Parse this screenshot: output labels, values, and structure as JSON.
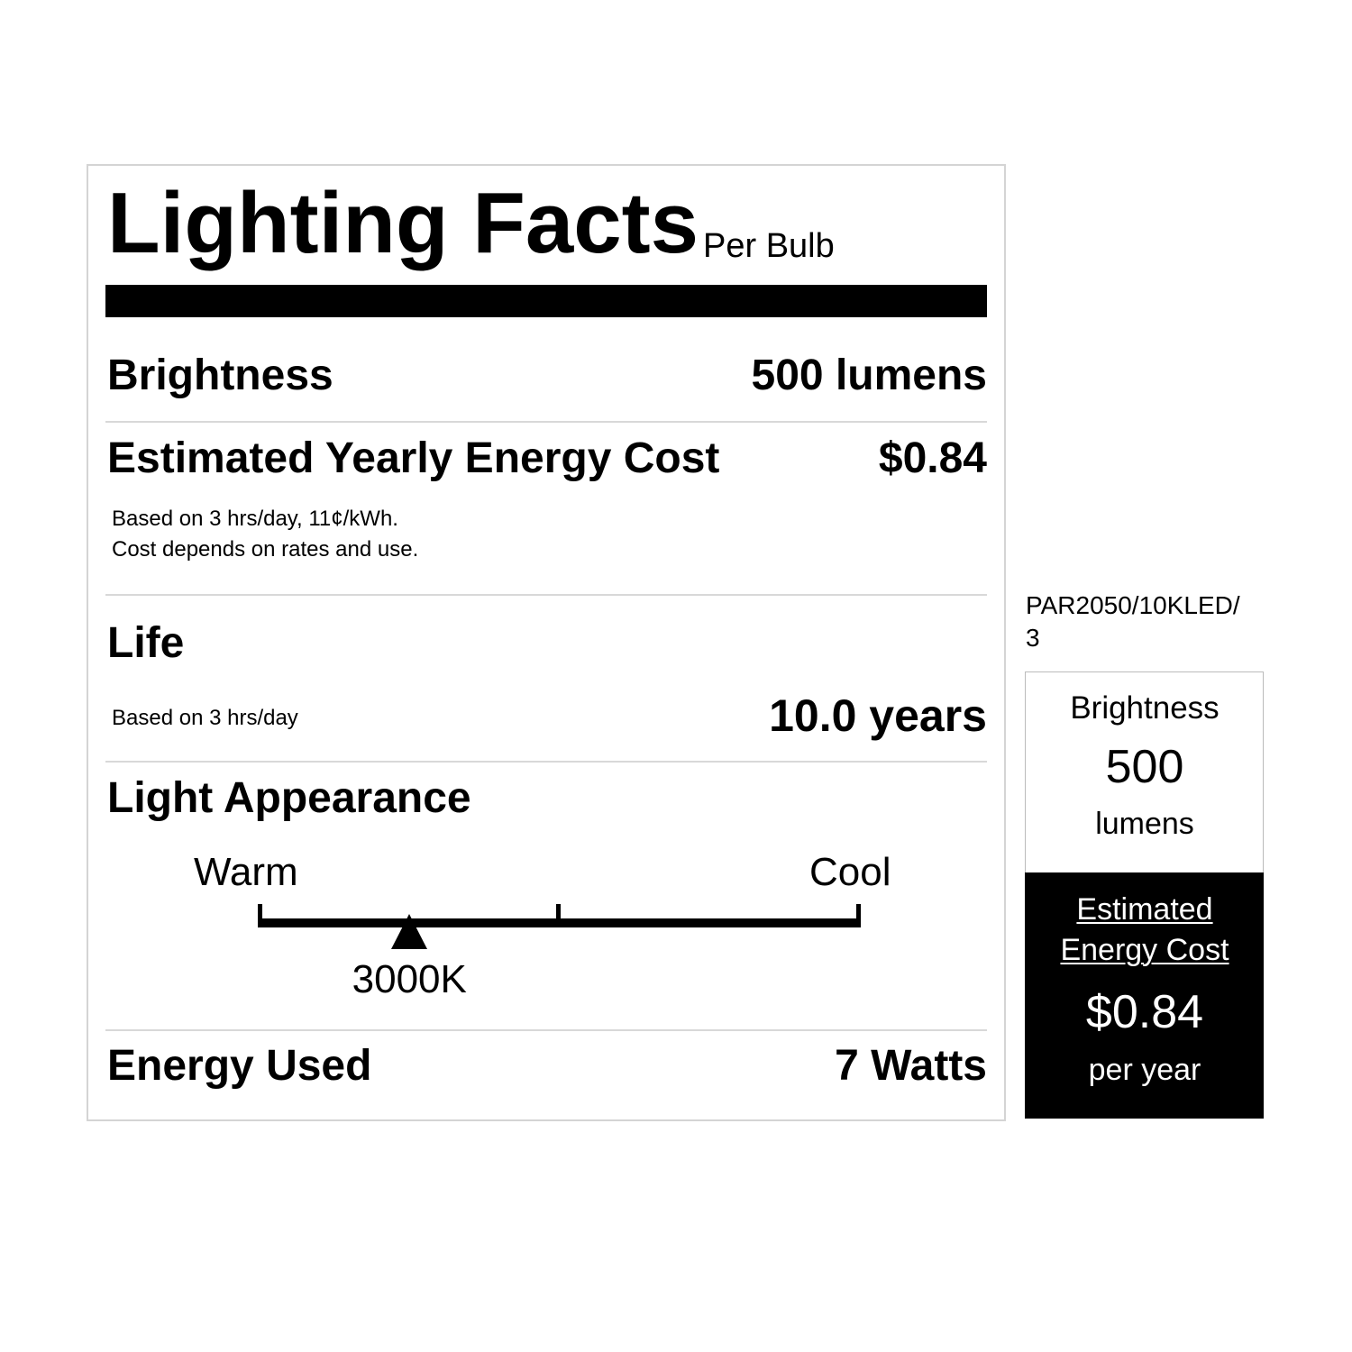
{
  "label": {
    "title": "Lighting Facts",
    "subtitle": "Per Bulb",
    "brightness": {
      "label": "Brightness",
      "value": "500 lumens"
    },
    "cost": {
      "label": "Estimated Yearly Energy Cost",
      "value": "$0.84",
      "note1": "Based on 3 hrs/day, 11¢/kWh.",
      "note2": "Cost depends on rates and use."
    },
    "life": {
      "label": "Life",
      "note": "Based on 3 hrs/day",
      "value": "10.0 years"
    },
    "appearance": {
      "label": "Light Appearance",
      "warm": "Warm",
      "cool": "Cool",
      "value": "3000K",
      "position_fraction": 0.25
    },
    "energy": {
      "label": "Energy Used",
      "value": "7 Watts"
    }
  },
  "side": {
    "model_line1": "PAR2050/10KLED/",
    "model_line2": "3",
    "brightness_label": "Brightness",
    "brightness_value": "500",
    "brightness_unit": "lumens",
    "cost_label1": "Estimated",
    "cost_label2": "Energy Cost",
    "cost_value": "$0.84",
    "cost_unit": "per year"
  }
}
